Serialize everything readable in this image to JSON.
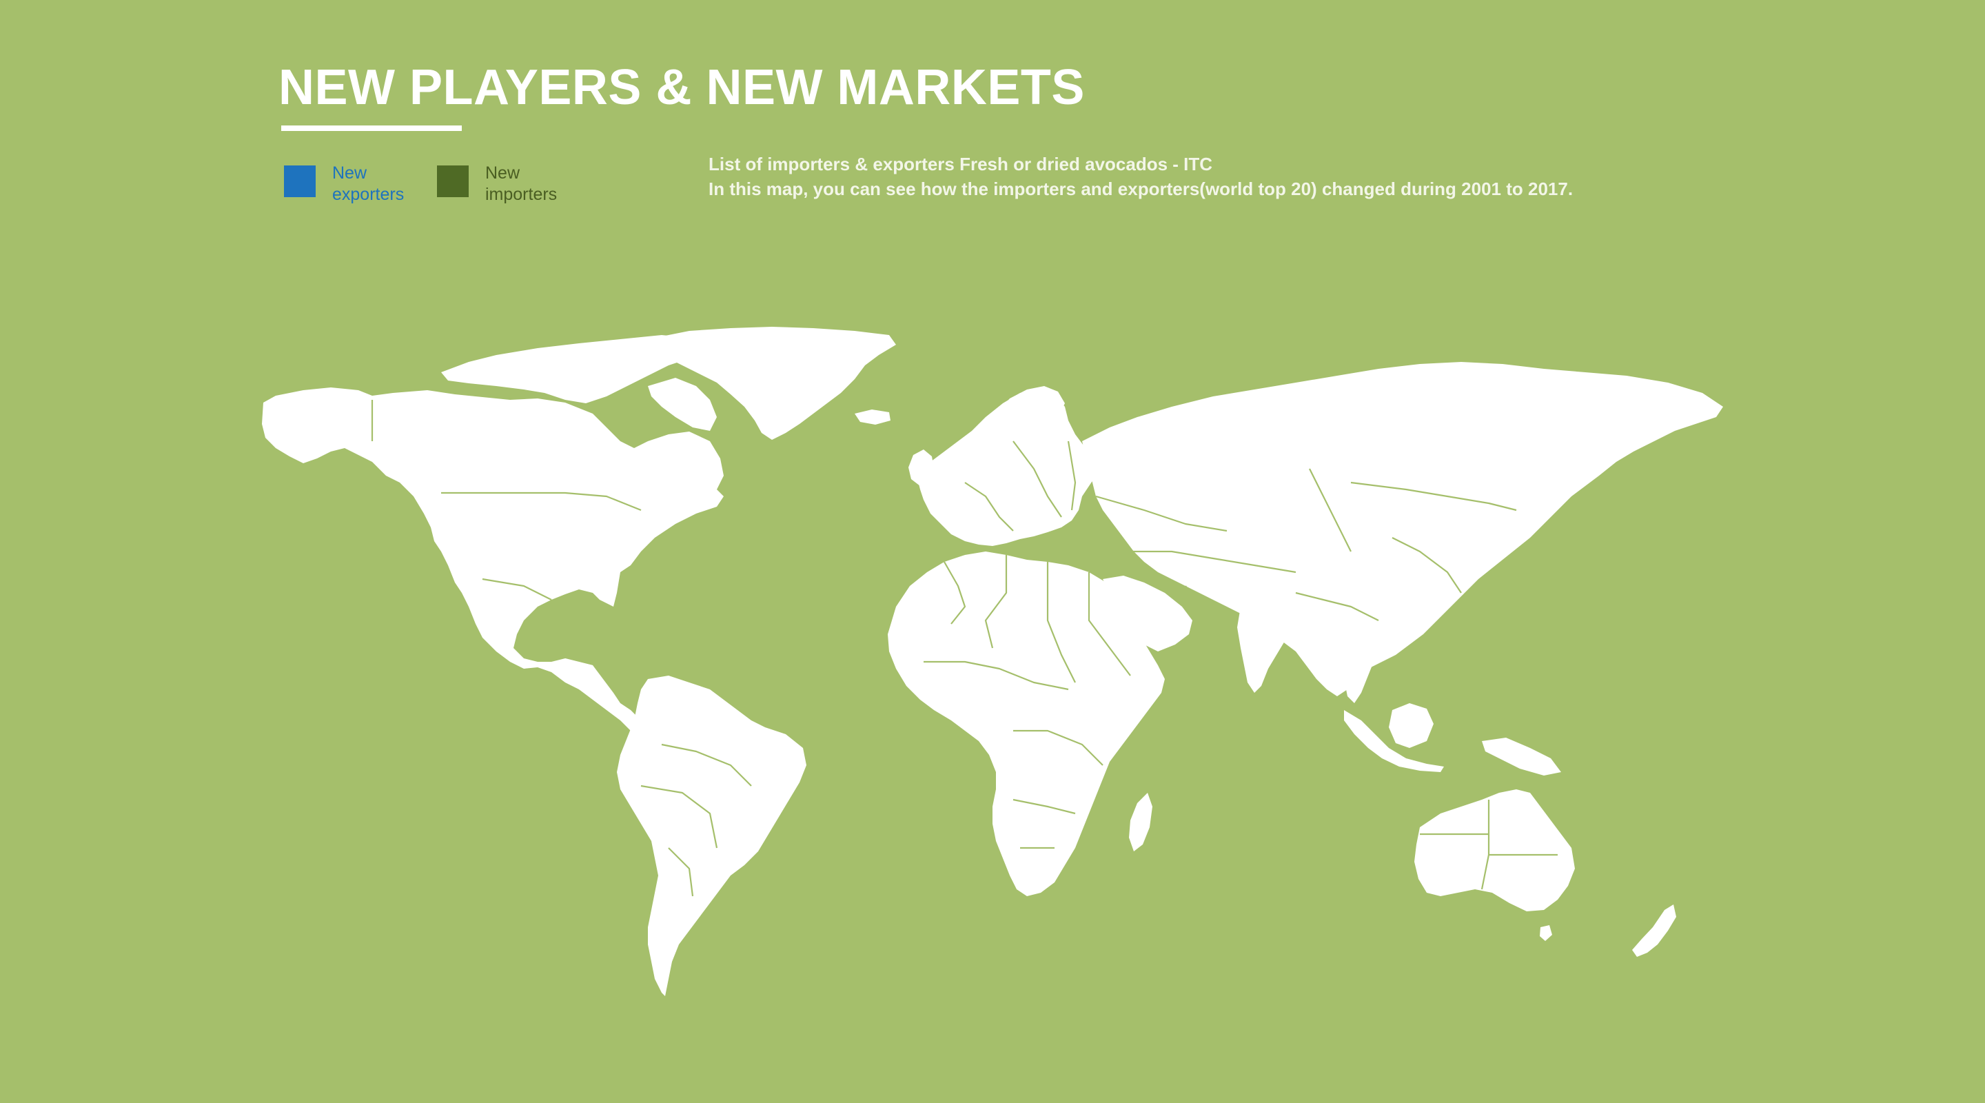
{
  "header": {
    "title": "NEW PLAYERS & NEW MARKETS"
  },
  "legend": {
    "items": [
      {
        "label": "New exporters",
        "color": "#1e73be",
        "swatch_color": "#1e73be"
      },
      {
        "label": "New importers",
        "color": "#4a5e22",
        "swatch_color": "#4f6a25"
      }
    ]
  },
  "description": {
    "line1": "List of importers & exporters Fresh or dried avocados - ITC",
    "line2": "In this map, you can see how the importers and exporters(world top 20) changed during 2001 to 2017."
  },
  "map": {
    "land_color": "#ffffff",
    "background_color": "#a5bf6b",
    "border_color": "#a5bf6b",
    "highlighted_countries": []
  }
}
